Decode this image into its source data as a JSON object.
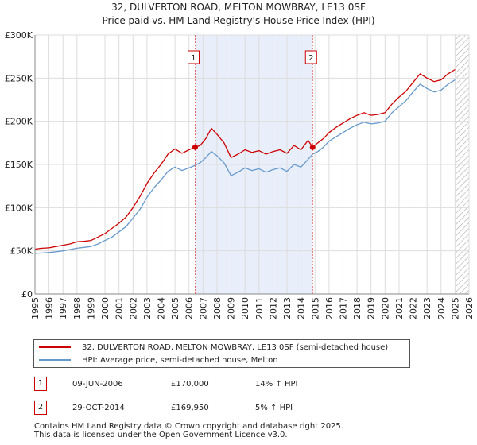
{
  "title_line1": "32, DULVERTON ROAD, MELTON MOWBRAY, LE13 0SF",
  "title_line2": "Price paid vs. HM Land Registry's House Price Index (HPI)",
  "chart_data": {
    "type": "line",
    "xlim": [
      1995,
      2026
    ],
    "ylim": [
      0,
      300000
    ],
    "x_ticks": [
      "1995",
      "1996",
      "1997",
      "1998",
      "1999",
      "2000",
      "2001",
      "2002",
      "2003",
      "2004",
      "2005",
      "2006",
      "2007",
      "2008",
      "2009",
      "2010",
      "2011",
      "2012",
      "2013",
      "2014",
      "2015",
      "2016",
      "2017",
      "2018",
      "2019",
      "2020",
      "2021",
      "2022",
      "2023",
      "2024",
      "2025",
      "2026"
    ],
    "y_ticks": [
      {
        "value": 0,
        "label": "£0"
      },
      {
        "value": 50000,
        "label": "£50K"
      },
      {
        "value": 100000,
        "label": "£100K"
      },
      {
        "value": 150000,
        "label": "£150K"
      },
      {
        "value": 200000,
        "label": "£200K"
      },
      {
        "value": 250000,
        "label": "£250K"
      },
      {
        "value": 300000,
        "label": "£300K"
      }
    ],
    "shaded_between_sales": [
      2006.44,
      2014.83
    ],
    "future_hatch_start": 2025.0,
    "series": [
      {
        "name": "32, DULVERTON ROAD, MELTON MOWBRAY, LE13 0SF (semi-detached house)",
        "color": "#cc0000",
        "points": [
          [
            1995.0,
            52000
          ],
          [
            1995.5,
            53000
          ],
          [
            1996.0,
            53500
          ],
          [
            1996.5,
            55000
          ],
          [
            1997.0,
            56500
          ],
          [
            1997.5,
            58000
          ],
          [
            1998.0,
            60500
          ],
          [
            1998.5,
            61000
          ],
          [
            1999.0,
            62000
          ],
          [
            1999.5,
            66000
          ],
          [
            2000.0,
            70000
          ],
          [
            2000.5,
            76000
          ],
          [
            2001.0,
            82000
          ],
          [
            2001.5,
            89000
          ],
          [
            2002.0,
            100000
          ],
          [
            2002.5,
            113000
          ],
          [
            2003.0,
            128000
          ],
          [
            2003.5,
            140000
          ],
          [
            2004.0,
            150000
          ],
          [
            2004.5,
            162000
          ],
          [
            2005.0,
            168000
          ],
          [
            2005.5,
            163000
          ],
          [
            2006.0,
            167000
          ],
          [
            2006.44,
            170000
          ],
          [
            2006.8,
            172000
          ],
          [
            2007.2,
            180000
          ],
          [
            2007.6,
            192000
          ],
          [
            2008.0,
            185000
          ],
          [
            2008.5,
            175000
          ],
          [
            2009.0,
            158000
          ],
          [
            2009.5,
            162000
          ],
          [
            2010.0,
            167000
          ],
          [
            2010.5,
            164000
          ],
          [
            2011.0,
            166000
          ],
          [
            2011.5,
            162000
          ],
          [
            2012.0,
            165000
          ],
          [
            2012.5,
            167000
          ],
          [
            2013.0,
            163000
          ],
          [
            2013.5,
            172000
          ],
          [
            2014.0,
            167000
          ],
          [
            2014.5,
            178000
          ],
          [
            2014.83,
            169950
          ],
          [
            2015.2,
            175000
          ],
          [
            2015.6,
            180000
          ],
          [
            2016.0,
            187000
          ],
          [
            2016.5,
            193000
          ],
          [
            2017.0,
            198000
          ],
          [
            2017.5,
            203000
          ],
          [
            2018.0,
            207000
          ],
          [
            2018.5,
            210000
          ],
          [
            2019.0,
            207000
          ],
          [
            2019.5,
            208000
          ],
          [
            2020.0,
            210000
          ],
          [
            2020.5,
            220000
          ],
          [
            2021.0,
            228000
          ],
          [
            2021.5,
            235000
          ],
          [
            2022.0,
            245000
          ],
          [
            2022.5,
            255000
          ],
          [
            2023.0,
            250000
          ],
          [
            2023.5,
            246000
          ],
          [
            2024.0,
            248000
          ],
          [
            2024.5,
            255000
          ],
          [
            2025.0,
            260000
          ]
        ]
      },
      {
        "name": "HPI: Average price, semi-detached house, Melton",
        "color": "#6699cc",
        "points": [
          [
            1995.0,
            47000
          ],
          [
            1995.5,
            47500
          ],
          [
            1996.0,
            48000
          ],
          [
            1996.5,
            49000
          ],
          [
            1997.0,
            50000
          ],
          [
            1997.5,
            51500
          ],
          [
            1998.0,
            53000
          ],
          [
            1998.5,
            54000
          ],
          [
            1999.0,
            55000
          ],
          [
            1999.5,
            58000
          ],
          [
            2000.0,
            62000
          ],
          [
            2000.5,
            66000
          ],
          [
            2001.0,
            72000
          ],
          [
            2001.5,
            78000
          ],
          [
            2002.0,
            88000
          ],
          [
            2002.5,
            98000
          ],
          [
            2003.0,
            112000
          ],
          [
            2003.5,
            123000
          ],
          [
            2004.0,
            132000
          ],
          [
            2004.5,
            142000
          ],
          [
            2005.0,
            147000
          ],
          [
            2005.5,
            143000
          ],
          [
            2006.0,
            146000
          ],
          [
            2006.44,
            149000
          ],
          [
            2006.8,
            152000
          ],
          [
            2007.2,
            158000
          ],
          [
            2007.6,
            165000
          ],
          [
            2008.0,
            160000
          ],
          [
            2008.5,
            152000
          ],
          [
            2009.0,
            137000
          ],
          [
            2009.5,
            141000
          ],
          [
            2010.0,
            146000
          ],
          [
            2010.5,
            143000
          ],
          [
            2011.0,
            145000
          ],
          [
            2011.5,
            141000
          ],
          [
            2012.0,
            144000
          ],
          [
            2012.5,
            146000
          ],
          [
            2013.0,
            142000
          ],
          [
            2013.5,
            150000
          ],
          [
            2014.0,
            147000
          ],
          [
            2014.5,
            156000
          ],
          [
            2014.83,
            162000
          ],
          [
            2015.2,
            165000
          ],
          [
            2015.6,
            170000
          ],
          [
            2016.0,
            177000
          ],
          [
            2016.5,
            182000
          ],
          [
            2017.0,
            187000
          ],
          [
            2017.5,
            192000
          ],
          [
            2018.0,
            196000
          ],
          [
            2018.5,
            199000
          ],
          [
            2019.0,
            197000
          ],
          [
            2019.5,
            198000
          ],
          [
            2020.0,
            200000
          ],
          [
            2020.5,
            210000
          ],
          [
            2021.0,
            217000
          ],
          [
            2021.5,
            224000
          ],
          [
            2022.0,
            234000
          ],
          [
            2022.5,
            243000
          ],
          [
            2023.0,
            238000
          ],
          [
            2023.5,
            234000
          ],
          [
            2024.0,
            236000
          ],
          [
            2024.5,
            243000
          ],
          [
            2025.0,
            248000
          ]
        ]
      }
    ],
    "sales": [
      {
        "id": "1",
        "x": 2006.44,
        "y": 170000
      },
      {
        "id": "2",
        "x": 2014.83,
        "y": 169950
      }
    ]
  },
  "legend": {
    "property_label": "32, DULVERTON ROAD, MELTON MOWBRAY, LE13 0SF (semi-detached house)",
    "hpi_label": "HPI: Average price, semi-detached house, Melton",
    "property_color": "#cc0000",
    "hpi_color": "#6699cc"
  },
  "sales_table": [
    {
      "id": "1",
      "date": "09-JUN-2006",
      "price": "£170,000",
      "hpi": "14% ↑ HPI"
    },
    {
      "id": "2",
      "date": "29-OCT-2014",
      "price": "£169,950",
      "hpi": "5% ↑ HPI"
    }
  ],
  "footer_line1": "Contains HM Land Registry data © Crown copyright and database right 2025.",
  "footer_line2": "This data is licensed under the Open Government Licence v3.0."
}
